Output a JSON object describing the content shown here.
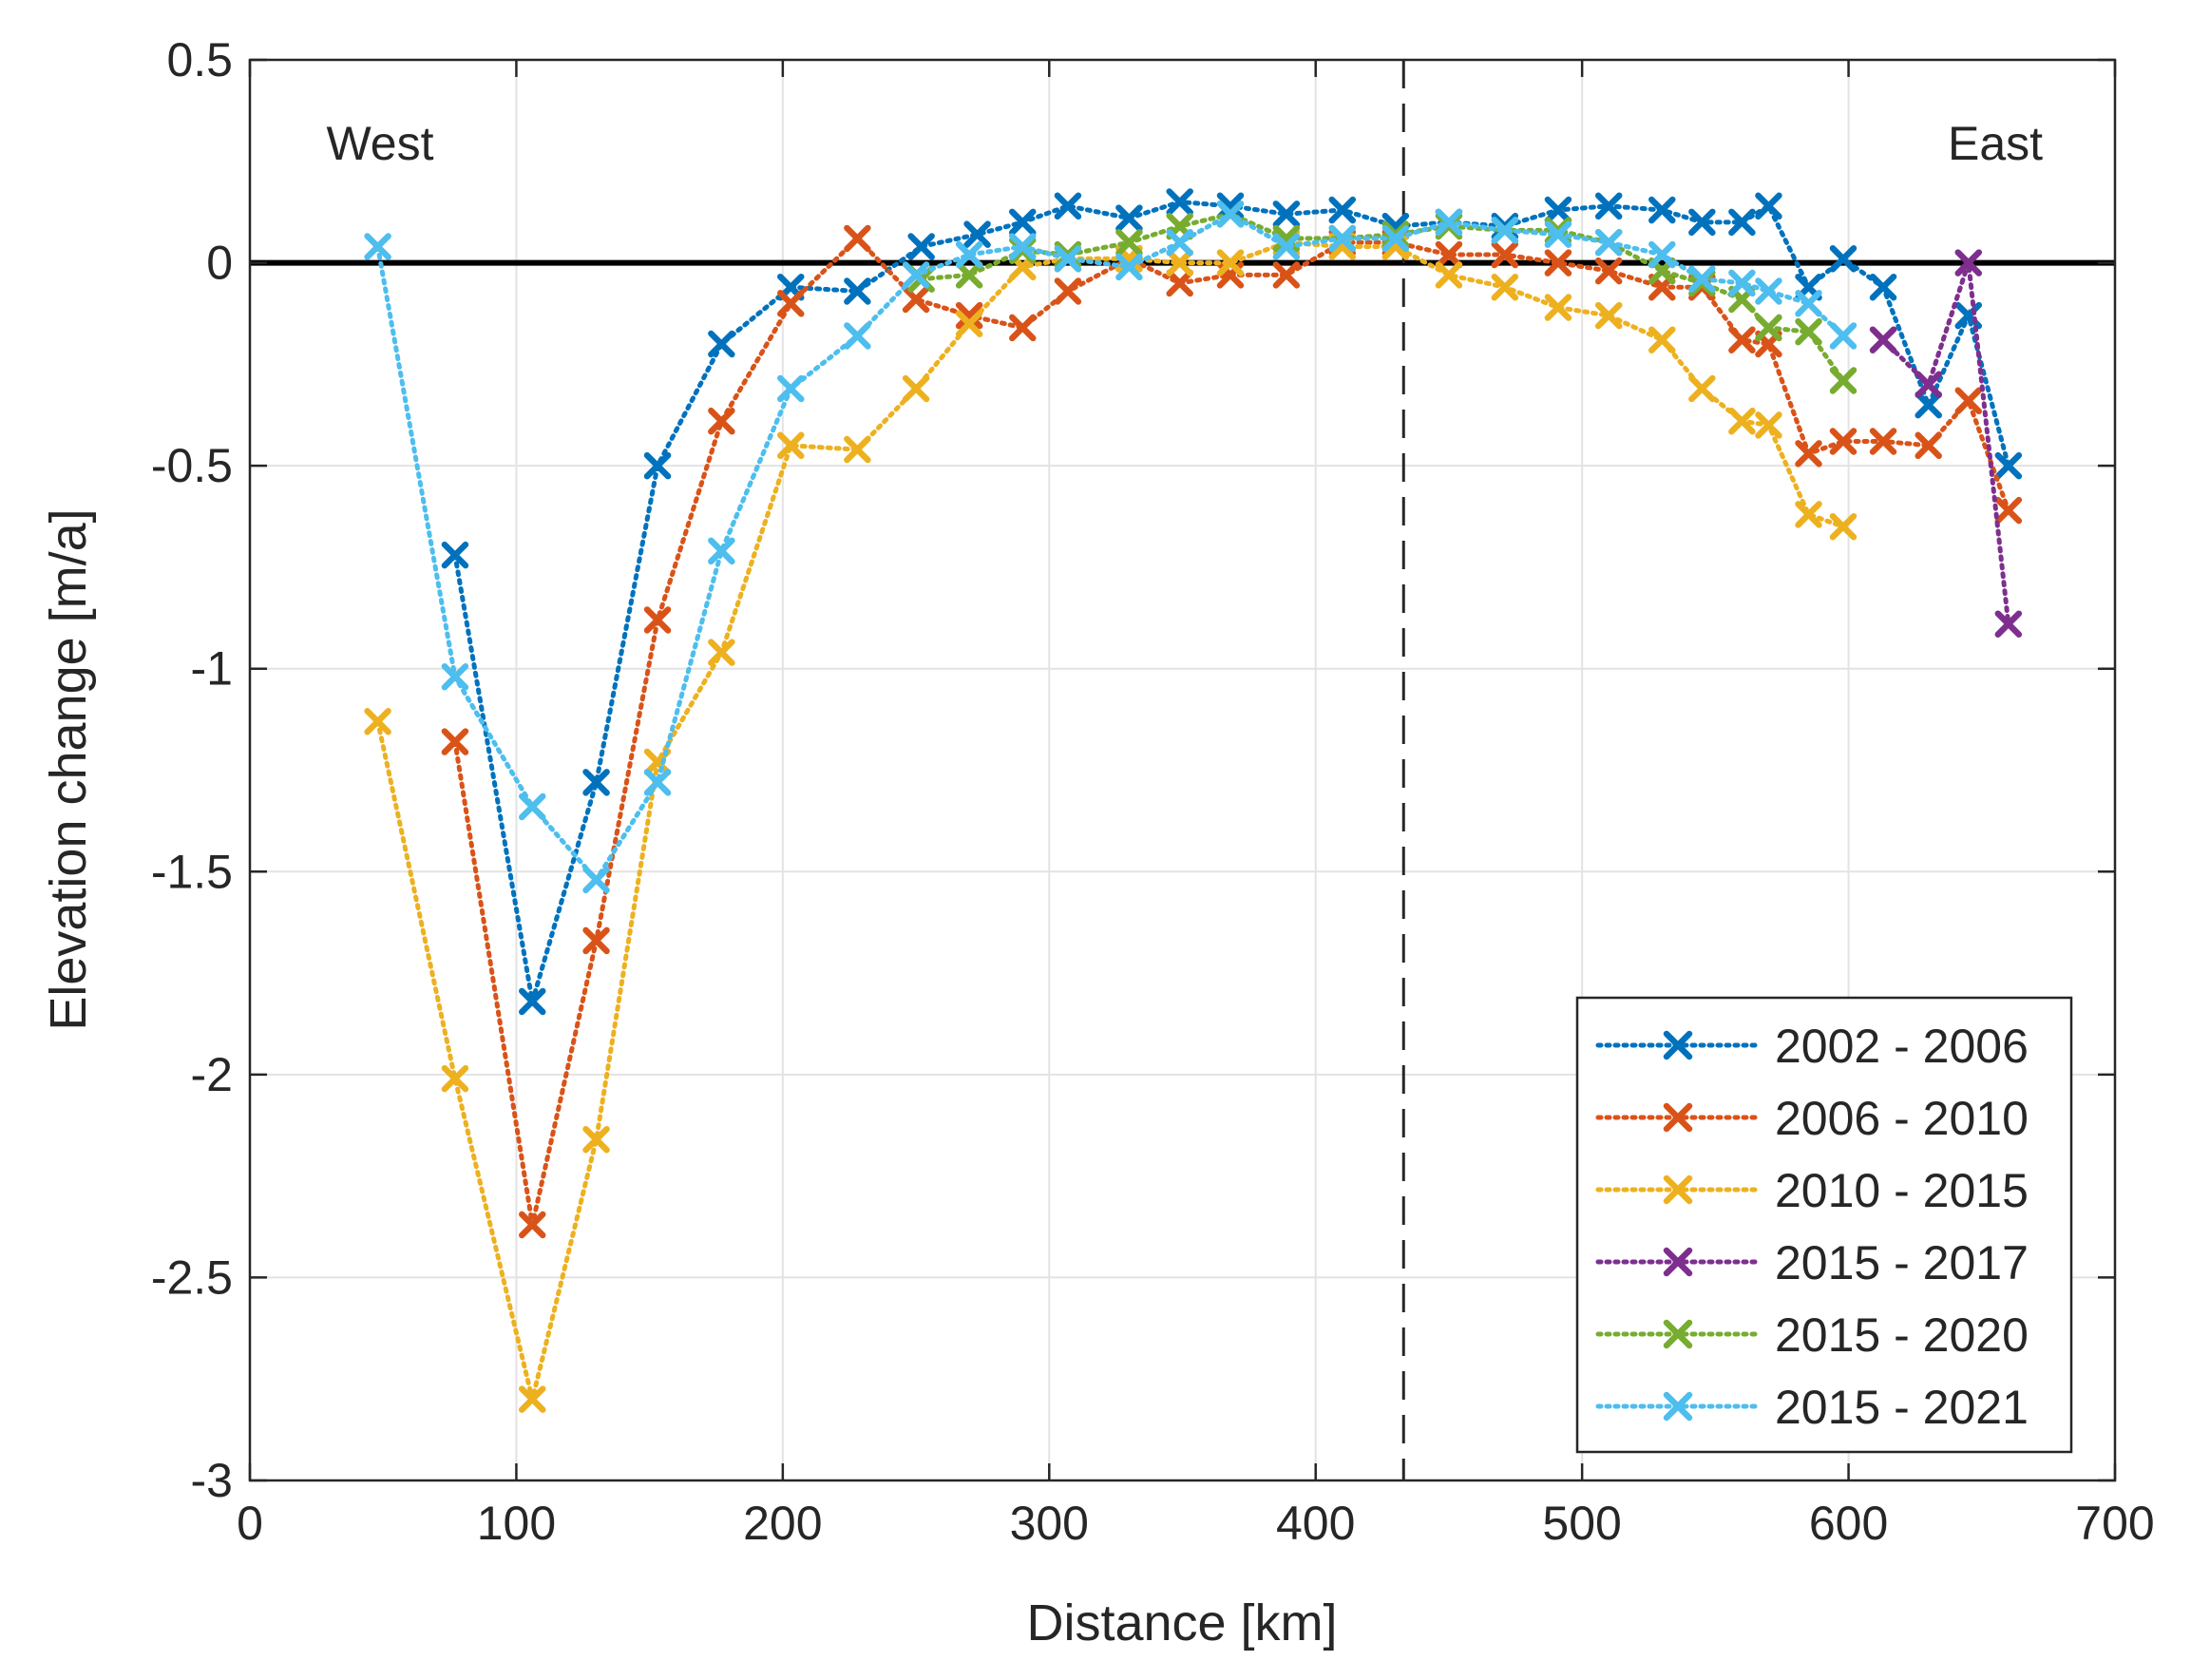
{
  "chart_data": {
    "type": "line",
    "title": "",
    "xlabel": "Distance [km]",
    "ylabel": "Elevation change [m/a]",
    "xlim": [
      0,
      700
    ],
    "ylim": [
      -3,
      0.5
    ],
    "xticks": [
      "0",
      "100",
      "200",
      "300",
      "400",
      "500",
      "600",
      "700"
    ],
    "yticks": [
      "0.5",
      "0",
      "-0.5",
      "-1",
      "-1.5",
      "-2",
      "-2.5",
      "-3"
    ],
    "grid": true,
    "legend_position": "bottom-right",
    "reference_line_y": 0,
    "divider_x": 433,
    "annotations": {
      "west": "West",
      "east": "East"
    },
    "series": [
      {
        "name": "2002 - 2006",
        "color": "#0072BD",
        "x": [
          77,
          106,
          130,
          153,
          177,
          203,
          228,
          252,
          273,
          290,
          307,
          330,
          349,
          368,
          389,
          410,
          430,
          450,
          471,
          491,
          510,
          530,
          545,
          560,
          570,
          585,
          598,
          613,
          630,
          645,
          660
        ],
        "y": [
          -0.72,
          -1.82,
          -1.28,
          -0.5,
          -0.2,
          -0.06,
          -0.07,
          0.04,
          0.07,
          0.1,
          0.14,
          0.11,
          0.15,
          0.14,
          0.12,
          0.13,
          0.09,
          0.1,
          0.09,
          0.13,
          0.14,
          0.13,
          0.1,
          0.1,
          0.14,
          -0.06,
          0.01,
          -0.06,
          -0.35,
          -0.13,
          -0.5
        ]
      },
      {
        "name": "2006 - 2010",
        "color": "#D95319",
        "x": [
          77,
          106,
          130,
          153,
          177,
          203,
          228,
          250,
          270,
          290,
          307,
          330,
          349,
          368,
          389,
          410,
          430,
          450,
          471,
          491,
          510,
          530,
          545,
          560,
          570,
          585,
          598,
          613,
          630,
          645,
          660
        ],
        "y": [
          -1.18,
          -2.37,
          -1.67,
          -0.88,
          -0.39,
          -0.1,
          0.06,
          -0.09,
          -0.13,
          -0.16,
          -0.07,
          0.01,
          -0.05,
          -0.03,
          -0.03,
          0.05,
          0.05,
          0.02,
          0.02,
          0.0,
          -0.02,
          -0.06,
          -0.06,
          -0.19,
          -0.2,
          -0.47,
          -0.44,
          -0.44,
          -0.45,
          -0.34,
          -0.61
        ]
      },
      {
        "name": "2010 - 2015",
        "color": "#EDB120",
        "x": [
          48,
          77,
          106,
          130,
          153,
          177,
          203,
          228,
          250,
          270,
          290,
          307,
          330,
          349,
          368,
          389,
          410,
          430,
          450,
          471,
          491,
          510,
          530,
          545,
          560,
          570,
          585,
          598
        ],
        "y": [
          -1.13,
          -2.01,
          -2.8,
          -2.16,
          -1.23,
          -0.96,
          -0.45,
          -0.46,
          -0.31,
          -0.15,
          -0.01,
          0.01,
          0.01,
          0.0,
          0.0,
          0.05,
          0.04,
          0.04,
          -0.03,
          -0.06,
          -0.11,
          -0.13,
          -0.19,
          -0.31,
          -0.39,
          -0.4,
          -0.62,
          -0.65
        ]
      },
      {
        "name": "2015 - 2017",
        "color": "#7E2F8E",
        "x": [
          613,
          630,
          645,
          660
        ],
        "y": [
          -0.19,
          -0.3,
          0.0,
          -0.89
        ]
      },
      {
        "name": "2015 - 2020",
        "color": "#77AC30",
        "x": [
          252,
          270,
          290,
          307,
          330,
          349,
          368,
          389,
          410,
          430,
          450,
          471,
          491,
          510,
          530,
          545,
          560,
          570,
          585,
          598
        ],
        "y": [
          -0.04,
          -0.03,
          0.03,
          0.02,
          0.05,
          0.09,
          0.12,
          0.06,
          0.06,
          0.07,
          0.09,
          0.08,
          0.08,
          0.05,
          -0.02,
          -0.05,
          -0.09,
          -0.16,
          -0.17,
          -0.29
        ]
      },
      {
        "name": "2015 - 2021",
        "color": "#4DBEEE",
        "x": [
          48,
          77,
          106,
          130,
          153,
          177,
          203,
          228,
          250,
          270,
          290,
          307,
          330,
          349,
          368,
          389,
          410,
          430,
          450,
          471,
          491,
          510,
          530,
          545,
          560,
          570,
          585,
          598
        ],
        "y": [
          0.04,
          -1.02,
          -1.34,
          -1.52,
          -1.28,
          -0.71,
          -0.31,
          -0.18,
          -0.03,
          0.02,
          0.04,
          0.01,
          -0.01,
          0.05,
          0.12,
          0.04,
          0.06,
          0.06,
          0.1,
          0.08,
          0.07,
          0.05,
          0.02,
          -0.04,
          -0.05,
          -0.07,
          -0.1,
          -0.18
        ]
      }
    ]
  }
}
